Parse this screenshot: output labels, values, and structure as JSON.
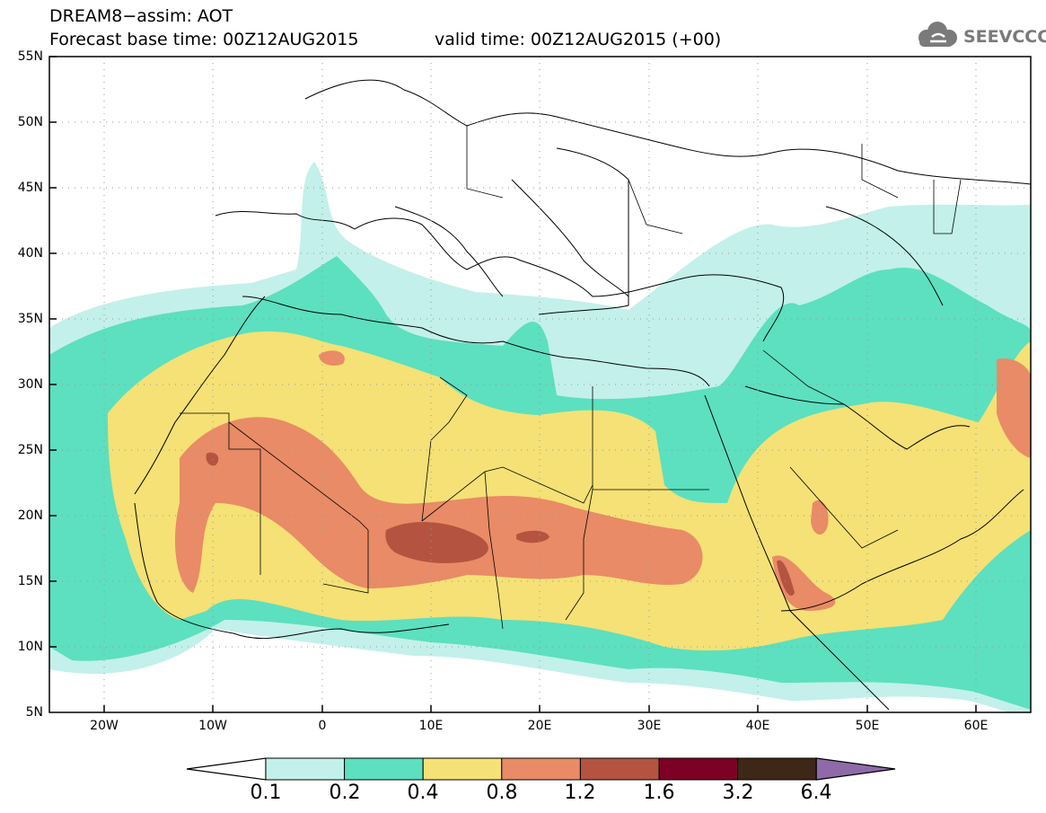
{
  "header": {
    "title_line1": "DREAM8−assim: AOT",
    "title_line2": "Forecast base time: 00Z12AUG2015",
    "valid_time": "valid time: 00Z12AUG2015 (+00)",
    "logo_text": "SEEVCCC"
  },
  "axes": {
    "y_labels": [
      "55N",
      "50N",
      "45N",
      "40N",
      "35N",
      "30N",
      "25N",
      "20N",
      "15N",
      "10N",
      "5N"
    ],
    "x_labels": [
      "20W",
      "10W",
      "0",
      "10E",
      "20E",
      "30E",
      "40E",
      "50E",
      "60E"
    ]
  },
  "colorbar": {
    "labels": [
      "0.1",
      "0.2",
      "0.4",
      "0.8",
      "1.2",
      "1.6",
      "3.2",
      "6.4"
    ],
    "colors": [
      "#c3f0ea",
      "#5ce0bf",
      "#f5e175",
      "#e98b66",
      "#b45440",
      "#7d0025",
      "#3f2718",
      "#8f6aa9"
    ]
  }
}
